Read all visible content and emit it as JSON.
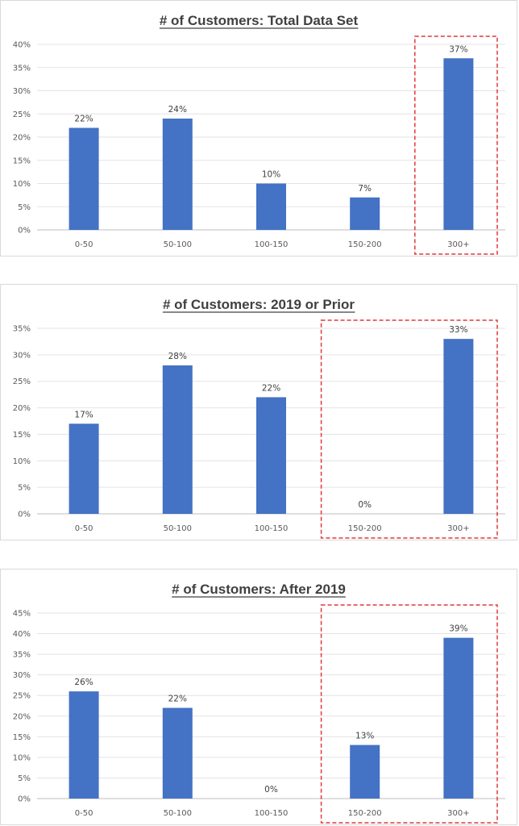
{
  "chart_data": [
    {
      "type": "bar",
      "title": "# of Customers: Total Data Set",
      "categories": [
        "0-50",
        "50-100",
        "100-150",
        "150-200",
        "300+"
      ],
      "values": [
        22,
        24,
        10,
        7,
        37
      ],
      "value_labels": [
        "22%",
        "24%",
        "10%",
        "7%",
        "37%"
      ],
      "ylim": [
        0,
        40
      ],
      "yticks": [
        "0%",
        "5%",
        "10%",
        "15%",
        "20%",
        "25%",
        "30%",
        "35%",
        "40%"
      ],
      "highlighted_categories": [
        "300+"
      ],
      "bar_color": "#4472C4",
      "highlight_color": "#E0393E",
      "grid": true
    },
    {
      "type": "bar",
      "title": "# of Customers: 2019 or Prior",
      "categories": [
        "0-50",
        "50-100",
        "100-150",
        "150-200",
        "300+"
      ],
      "values": [
        17,
        28,
        22,
        0,
        33
      ],
      "value_labels": [
        "17%",
        "28%",
        "22%",
        "0%",
        "33%"
      ],
      "ylim": [
        0,
        35
      ],
      "yticks": [
        "0%",
        "5%",
        "10%",
        "15%",
        "20%",
        "25%",
        "30%",
        "35%"
      ],
      "highlighted_categories": [
        "150-200",
        "300+"
      ],
      "bar_color": "#4472C4",
      "highlight_color": "#E0393E",
      "grid": true
    },
    {
      "type": "bar",
      "title": "# of Customers: After 2019",
      "categories": [
        "0-50",
        "50-100",
        "100-150",
        "150-200",
        "300+"
      ],
      "values": [
        26,
        22,
        0,
        13,
        39
      ],
      "value_labels": [
        "26%",
        "22%",
        "0%",
        "13%",
        "39%"
      ],
      "ylim": [
        0,
        45
      ],
      "yticks": [
        "0%",
        "5%",
        "10%",
        "15%",
        "20%",
        "25%",
        "30%",
        "35%",
        "40%",
        "45%"
      ],
      "highlighted_categories": [
        "150-200",
        "300+"
      ],
      "bar_color": "#4472C4",
      "highlight_color": "#E0393E",
      "grid": true
    }
  ]
}
